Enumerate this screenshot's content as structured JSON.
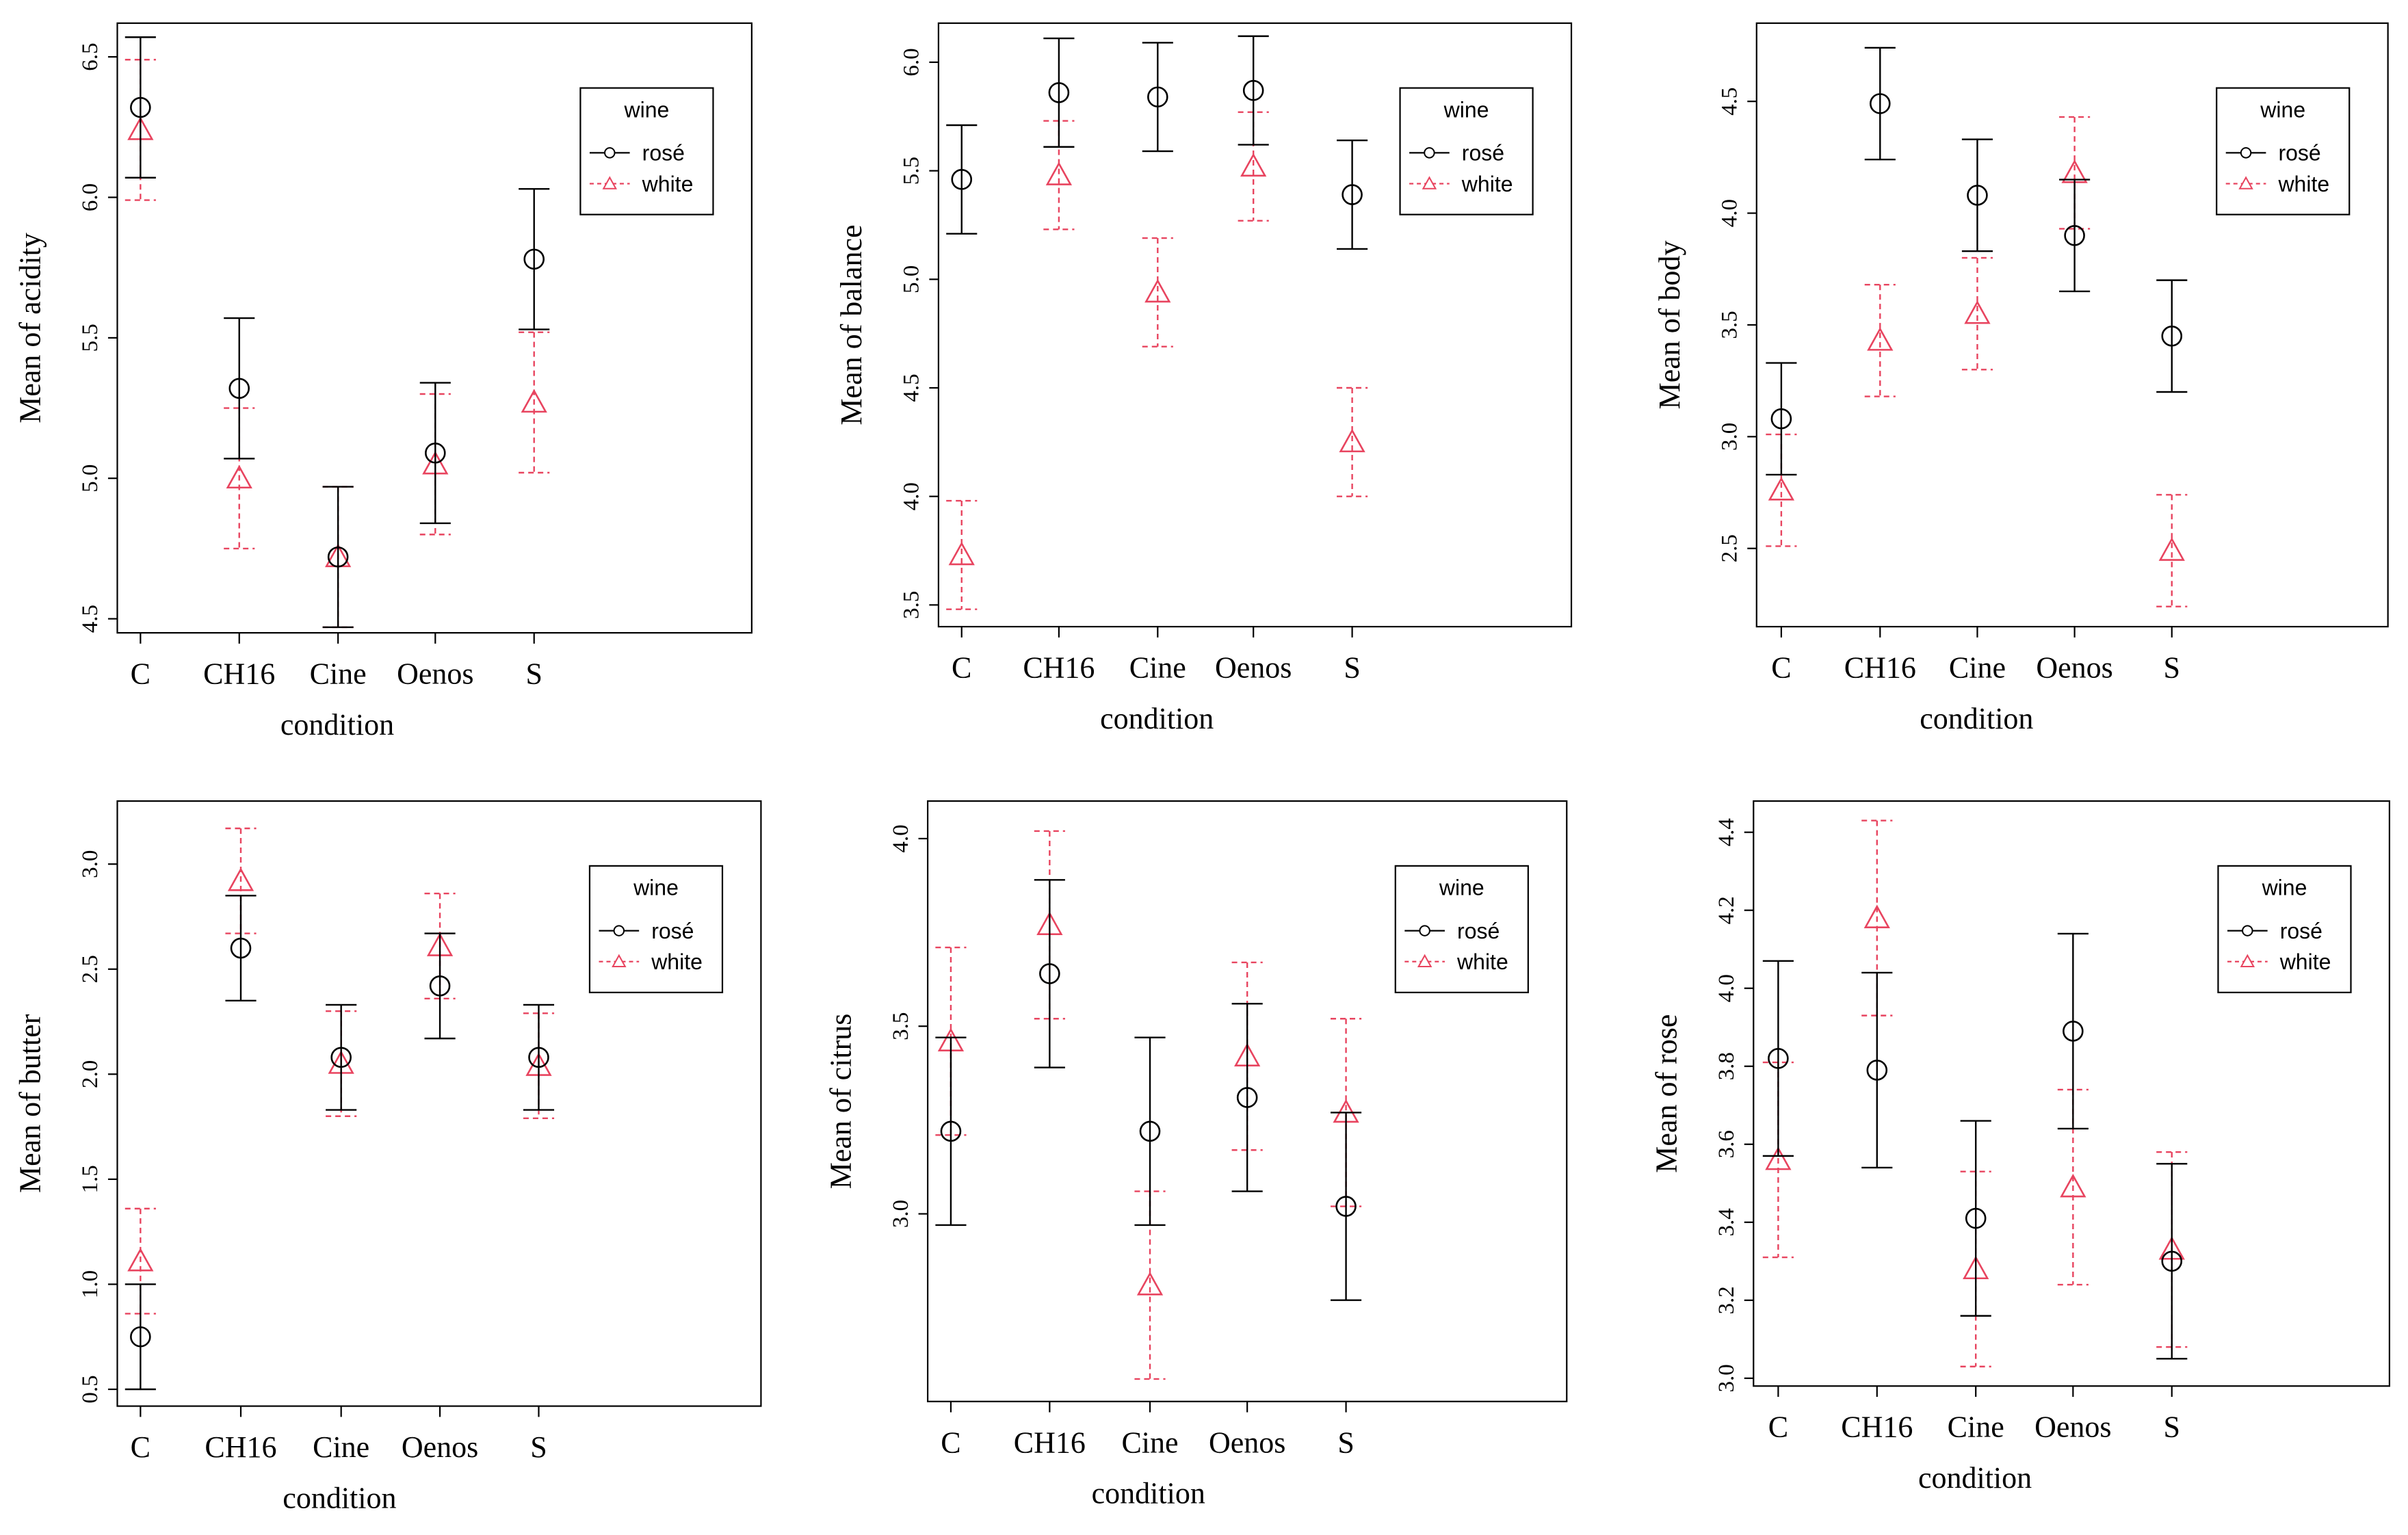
{
  "chart_data": [
    {
      "type": "line",
      "ylabel": "Mean of acidity",
      "xlabel": "condition",
      "categories": [
        "C",
        "CH16",
        "Cine",
        "Oenos",
        "S"
      ],
      "ylim": [
        4.45,
        6.62
      ],
      "yticks": [
        "4.5",
        "5.0",
        "5.5",
        "6.0",
        "6.5"
      ],
      "legend": {
        "title": "wine",
        "position": "top-right"
      },
      "series": [
        {
          "name": "rosé",
          "mean": [
            6.32,
            5.32,
            4.72,
            5.09,
            5.78
          ],
          "lower": [
            6.07,
            5.07,
            4.47,
            4.84,
            5.53
          ],
          "upper": [
            6.57,
            5.57,
            4.97,
            5.34,
            6.03
          ]
        },
        {
          "name": "white",
          "mean": [
            6.24,
            5.0,
            4.72,
            5.05,
            5.27
          ],
          "lower": [
            5.99,
            4.75,
            4.47,
            4.8,
            5.02
          ],
          "upper": [
            6.49,
            5.25,
            4.97,
            5.3,
            5.52
          ]
        }
      ]
    },
    {
      "type": "line",
      "ylabel": "Mean of balance",
      "xlabel": "condition",
      "categories": [
        "C",
        "CH16",
        "Cine",
        "Oenos",
        "S"
      ],
      "ylim": [
        3.4,
        6.18
      ],
      "yticks": [
        "3.5",
        "4.0",
        "4.5",
        "5.0",
        "5.5",
        "6.0"
      ],
      "legend": {
        "title": "wine",
        "position": "top-right"
      },
      "series": [
        {
          "name": "rosé",
          "mean": [
            5.46,
            5.86,
            5.84,
            5.87,
            5.39
          ],
          "lower": [
            5.21,
            5.61,
            5.59,
            5.62,
            5.14
          ],
          "upper": [
            5.71,
            6.11,
            6.09,
            6.12,
            5.64
          ]
        },
        {
          "name": "white",
          "mean": [
            3.73,
            5.48,
            4.94,
            5.52,
            4.25
          ],
          "lower": [
            3.48,
            5.23,
            4.69,
            5.27,
            4.0
          ],
          "upper": [
            3.98,
            5.73,
            5.19,
            5.77,
            4.5
          ]
        }
      ]
    },
    {
      "type": "line",
      "ylabel": "Mean of body",
      "xlabel": "condition",
      "categories": [
        "C",
        "CH16",
        "Cine",
        "Oenos",
        "S"
      ],
      "ylim": [
        2.15,
        4.85
      ],
      "yticks": [
        "2.5",
        "3.0",
        "3.5",
        "4.0",
        "4.5"
      ],
      "legend": {
        "title": "wine",
        "position": "top-right"
      },
      "series": [
        {
          "name": "rosé",
          "mean": [
            3.08,
            4.49,
            4.08,
            3.9,
            3.45
          ],
          "lower": [
            2.83,
            4.24,
            3.83,
            3.65,
            3.2
          ],
          "upper": [
            3.33,
            4.74,
            4.33,
            4.15,
            3.7
          ]
        },
        {
          "name": "white",
          "mean": [
            2.76,
            3.43,
            3.55,
            4.18,
            2.49
          ],
          "lower": [
            2.51,
            3.18,
            3.3,
            3.93,
            2.24
          ],
          "upper": [
            3.01,
            3.68,
            3.8,
            4.43,
            2.74
          ]
        }
      ]
    },
    {
      "type": "line",
      "ylabel": "Mean of butter",
      "xlabel": "condition",
      "categories": [
        "C",
        "CH16",
        "Cine",
        "Oenos",
        "S"
      ],
      "ylim": [
        0.42,
        3.3
      ],
      "yticks": [
        "0.5",
        "1.0",
        "1.5",
        "2.0",
        "2.5",
        "3.0"
      ],
      "legend": {
        "title": "wine",
        "position": "top-right"
      },
      "series": [
        {
          "name": "rosé",
          "mean": [
            0.75,
            2.6,
            2.08,
            2.42,
            2.08
          ],
          "lower": [
            0.5,
            2.35,
            1.83,
            2.17,
            1.83
          ],
          "upper": [
            1.0,
            2.85,
            2.33,
            2.67,
            2.33
          ]
        },
        {
          "name": "white",
          "mean": [
            1.11,
            2.92,
            2.05,
            2.61,
            2.04
          ],
          "lower": [
            0.86,
            2.67,
            1.8,
            2.36,
            1.79
          ],
          "upper": [
            1.36,
            3.17,
            2.3,
            2.86,
            2.29
          ]
        }
      ]
    },
    {
      "type": "line",
      "ylabel": "Mean of citrus",
      "xlabel": "condition",
      "categories": [
        "C",
        "CH16",
        "Cine",
        "Oenos",
        "S"
      ],
      "ylim": [
        2.5,
        4.1
      ],
      "yticks": [
        "3.0",
        "3.5",
        "4.0"
      ],
      "legend": {
        "title": "wine",
        "position": "top-right"
      },
      "series": [
        {
          "name": "rosé",
          "mean": [
            3.22,
            3.64,
            3.22,
            3.31,
            3.02
          ],
          "lower": [
            2.97,
            3.39,
            2.97,
            3.06,
            2.77
          ],
          "upper": [
            3.47,
            3.89,
            3.47,
            3.56,
            3.27
          ]
        },
        {
          "name": "white",
          "mean": [
            3.46,
            3.77,
            2.81,
            3.42,
            3.27
          ],
          "lower": [
            3.21,
            3.52,
            2.56,
            3.17,
            3.02
          ],
          "upper": [
            3.71,
            4.02,
            3.06,
            3.67,
            3.52
          ]
        }
      ]
    },
    {
      "type": "line",
      "ylabel": "Mean of rose",
      "xlabel": "condition",
      "categories": [
        "C",
        "CH16",
        "Cine",
        "Oenos",
        "S"
      ],
      "ylim": [
        2.98,
        4.48
      ],
      "yticks": [
        "3.0",
        "3.2",
        "3.4",
        "3.6",
        "3.8",
        "4.0",
        "4.2",
        "4.4"
      ],
      "legend": {
        "title": "wine",
        "position": "top-right"
      },
      "series": [
        {
          "name": "rosé",
          "mean": [
            3.82,
            3.79,
            3.41,
            3.89,
            3.3
          ],
          "lower": [
            3.57,
            3.54,
            3.16,
            3.64,
            3.05
          ],
          "upper": [
            4.07,
            4.04,
            3.66,
            4.14,
            3.55
          ]
        },
        {
          "name": "white",
          "mean": [
            3.56,
            4.18,
            3.28,
            3.49,
            3.33
          ],
          "lower": [
            3.31,
            3.93,
            3.03,
            3.24,
            3.08
          ],
          "upper": [
            3.81,
            4.43,
            3.53,
            3.74,
            3.58
          ]
        }
      ]
    }
  ],
  "colors": {
    "rose_series": "#000000",
    "white_series": "#e8445f"
  }
}
